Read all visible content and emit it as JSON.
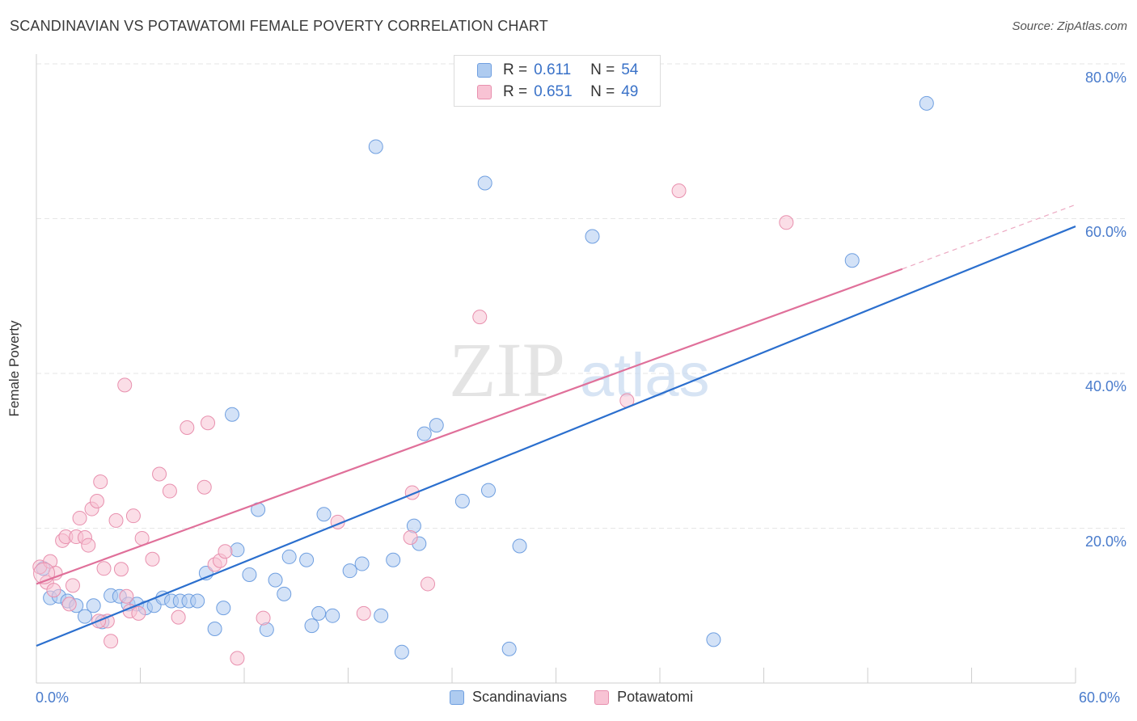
{
  "title": "SCANDINAVIAN VS POTAWATOMI FEMALE POVERTY CORRELATION CHART",
  "source": "Source: ZipAtlas.com",
  "watermark": {
    "zip": "ZIP",
    "atlas": "atlas"
  },
  "legend": {
    "rows": [
      {
        "r_label": "R =",
        "r_value": "0.611",
        "n_label": "N =",
        "n_value": "54"
      },
      {
        "r_label": "R =",
        "r_value": "0.651",
        "n_label": "N =",
        "n_value": "49"
      }
    ]
  },
  "bottom_legend": [
    "Scandinavians",
    "Potawatomi"
  ],
  "colors": {
    "scandinavian_fill": "#aecbf0",
    "scandinavian_stroke": "#6f9fe0",
    "scandinavian_line": "#2b6fce",
    "potawatomi_fill": "#f8c3d4",
    "potawatomi_stroke": "#e890ae",
    "potawatomi_line": "#e0709a",
    "grid": "#e6e6e6",
    "tick_label": "#4a7ccc"
  },
  "chart_data": {
    "type": "scatter",
    "title": "SCANDINAVIAN VS POTAWATOMI FEMALE POVERTY CORRELATION CHART",
    "xlabel": "",
    "ylabel": "Female Poverty",
    "xlim": [
      0,
      60
    ],
    "ylim": [
      0,
      80
    ],
    "x_ticks": [
      "0.0%",
      "60.0%"
    ],
    "y_ticks": [
      "20.0%",
      "40.0%",
      "60.0%",
      "80.0%"
    ],
    "y_tick_values": [
      20,
      40,
      60,
      80
    ],
    "grid": true,
    "legend_position": "top-center",
    "series": [
      {
        "name": "Scandinavians",
        "r": 0.611,
        "n": 54,
        "trend": {
          "x": [
            0,
            60
          ],
          "y": [
            4.8,
            59.0
          ]
        },
        "points": [
          [
            0.4,
            14.8
          ],
          [
            0.8,
            11.0
          ],
          [
            1.3,
            11.2
          ],
          [
            1.8,
            10.6
          ],
          [
            2.3,
            10.0
          ],
          [
            2.8,
            8.6
          ],
          [
            3.3,
            10.0
          ],
          [
            3.8,
            7.9
          ],
          [
            4.3,
            11.3
          ],
          [
            4.8,
            11.2
          ],
          [
            5.3,
            10.2
          ],
          [
            5.8,
            10.2
          ],
          [
            6.3,
            9.7
          ],
          [
            6.8,
            10.0
          ],
          [
            7.3,
            11.0
          ],
          [
            7.8,
            10.6
          ],
          [
            8.3,
            10.6
          ],
          [
            8.8,
            10.6
          ],
          [
            9.3,
            10.6
          ],
          [
            9.8,
            14.2
          ],
          [
            10.3,
            7.0
          ],
          [
            10.8,
            9.7
          ],
          [
            11.3,
            34.7
          ],
          [
            11.6,
            17.2
          ],
          [
            12.3,
            14.0
          ],
          [
            12.8,
            22.4
          ],
          [
            13.3,
            6.9
          ],
          [
            13.8,
            13.3
          ],
          [
            14.3,
            11.5
          ],
          [
            14.6,
            16.3
          ],
          [
            15.6,
            15.9
          ],
          [
            15.9,
            7.4
          ],
          [
            16.3,
            9.0
          ],
          [
            16.6,
            21.8
          ],
          [
            17.1,
            8.7
          ],
          [
            18.1,
            14.5
          ],
          [
            18.8,
            15.4
          ],
          [
            19.6,
            69.3
          ],
          [
            19.9,
            8.7
          ],
          [
            20.6,
            15.9
          ],
          [
            21.1,
            4.0
          ],
          [
            21.8,
            20.3
          ],
          [
            22.1,
            18.0
          ],
          [
            22.4,
            32.2
          ],
          [
            23.1,
            33.3
          ],
          [
            24.6,
            23.5
          ],
          [
            25.9,
            64.6
          ],
          [
            26.1,
            24.9
          ],
          [
            27.3,
            4.4
          ],
          [
            27.9,
            17.7
          ],
          [
            32.1,
            57.7
          ],
          [
            39.1,
            5.6
          ],
          [
            47.1,
            54.6
          ],
          [
            51.4,
            74.9
          ]
        ]
      },
      {
        "name": "Potawatomi",
        "r": 0.651,
        "n": 49,
        "trend": {
          "x": [
            0,
            50
          ],
          "y": [
            12.8,
            53.5
          ]
        },
        "trend_dashed": {
          "x": [
            50,
            60
          ],
          "y": [
            53.5,
            61.8
          ]
        },
        "points": [
          [
            0.2,
            15.0
          ],
          [
            0.6,
            13.0
          ],
          [
            0.8,
            15.7
          ],
          [
            1.0,
            12.0
          ],
          [
            1.1,
            14.2
          ],
          [
            1.5,
            18.4
          ],
          [
            1.7,
            18.9
          ],
          [
            1.9,
            10.2
          ],
          [
            2.1,
            12.6
          ],
          [
            2.3,
            18.9
          ],
          [
            2.5,
            21.3
          ],
          [
            2.8,
            18.8
          ],
          [
            3.0,
            17.8
          ],
          [
            3.2,
            22.5
          ],
          [
            3.5,
            23.5
          ],
          [
            3.7,
            26.0
          ],
          [
            3.9,
            14.8
          ],
          [
            4.1,
            8.0
          ],
          [
            4.3,
            5.4
          ],
          [
            4.6,
            21.0
          ],
          [
            4.9,
            14.7
          ],
          [
            5.2,
            11.2
          ],
          [
            5.4,
            9.3
          ],
          [
            5.6,
            21.6
          ],
          [
            5.9,
            9.0
          ],
          [
            6.1,
            18.7
          ],
          [
            6.7,
            16.0
          ],
          [
            7.1,
            27.0
          ],
          [
            7.7,
            24.8
          ],
          [
            8.2,
            8.5
          ],
          [
            8.7,
            33.0
          ],
          [
            9.7,
            25.3
          ],
          [
            9.9,
            33.6
          ],
          [
            10.3,
            15.3
          ],
          [
            10.6,
            15.8
          ],
          [
            10.9,
            17.0
          ],
          [
            11.6,
            3.2
          ],
          [
            13.1,
            8.4
          ],
          [
            17.4,
            20.8
          ],
          [
            18.9,
            9.0
          ],
          [
            21.6,
            18.8
          ],
          [
            21.7,
            24.6
          ],
          [
            22.6,
            12.8
          ],
          [
            25.6,
            47.3
          ],
          [
            34.1,
            36.5
          ],
          [
            37.1,
            63.6
          ],
          [
            43.3,
            59.5
          ],
          [
            5.1,
            38.5
          ],
          [
            3.6,
            8.0
          ]
        ]
      }
    ]
  }
}
